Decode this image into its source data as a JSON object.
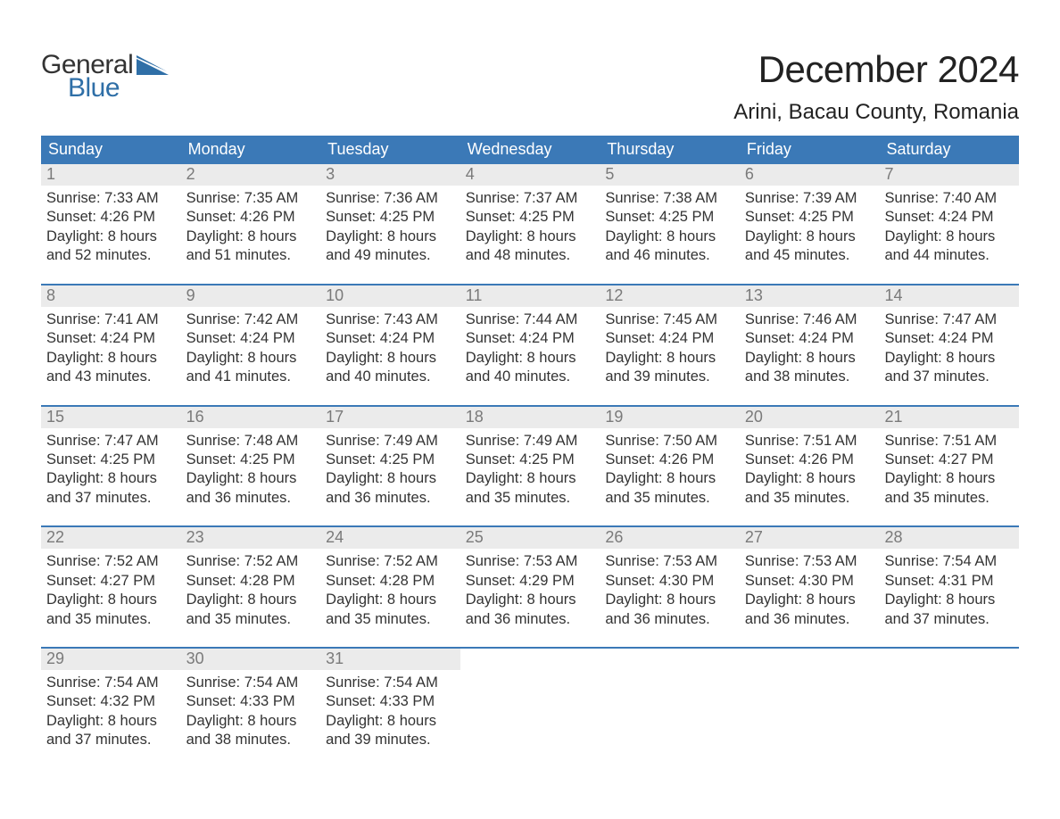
{
  "brand": {
    "word1": "General",
    "word2": "Blue",
    "accent_color": "#2f6fa7"
  },
  "title": "December 2024",
  "location": "Arini, Bacau County, Romania",
  "colors": {
    "header_bg": "#3b79b7",
    "header_fg": "#ffffff",
    "row_divider": "#3b79b7",
    "daynum_bg": "#ebebeb",
    "daynum_fg": "#7a7a7a",
    "body_text": "#333333",
    "page_bg": "#ffffff"
  },
  "days_of_week": [
    "Sunday",
    "Monday",
    "Tuesday",
    "Wednesday",
    "Thursday",
    "Friday",
    "Saturday"
  ],
  "weeks": [
    [
      {
        "n": "1",
        "sunrise": "Sunrise: 7:33 AM",
        "sunset": "Sunset: 4:26 PM",
        "day1": "Daylight: 8 hours",
        "day2": "and 52 minutes."
      },
      {
        "n": "2",
        "sunrise": "Sunrise: 7:35 AM",
        "sunset": "Sunset: 4:26 PM",
        "day1": "Daylight: 8 hours",
        "day2": "and 51 minutes."
      },
      {
        "n": "3",
        "sunrise": "Sunrise: 7:36 AM",
        "sunset": "Sunset: 4:25 PM",
        "day1": "Daylight: 8 hours",
        "day2": "and 49 minutes."
      },
      {
        "n": "4",
        "sunrise": "Sunrise: 7:37 AM",
        "sunset": "Sunset: 4:25 PM",
        "day1": "Daylight: 8 hours",
        "day2": "and 48 minutes."
      },
      {
        "n": "5",
        "sunrise": "Sunrise: 7:38 AM",
        "sunset": "Sunset: 4:25 PM",
        "day1": "Daylight: 8 hours",
        "day2": "and 46 minutes."
      },
      {
        "n": "6",
        "sunrise": "Sunrise: 7:39 AM",
        "sunset": "Sunset: 4:25 PM",
        "day1": "Daylight: 8 hours",
        "day2": "and 45 minutes."
      },
      {
        "n": "7",
        "sunrise": "Sunrise: 7:40 AM",
        "sunset": "Sunset: 4:24 PM",
        "day1": "Daylight: 8 hours",
        "day2": "and 44 minutes."
      }
    ],
    [
      {
        "n": "8",
        "sunrise": "Sunrise: 7:41 AM",
        "sunset": "Sunset: 4:24 PM",
        "day1": "Daylight: 8 hours",
        "day2": "and 43 minutes."
      },
      {
        "n": "9",
        "sunrise": "Sunrise: 7:42 AM",
        "sunset": "Sunset: 4:24 PM",
        "day1": "Daylight: 8 hours",
        "day2": "and 41 minutes."
      },
      {
        "n": "10",
        "sunrise": "Sunrise: 7:43 AM",
        "sunset": "Sunset: 4:24 PM",
        "day1": "Daylight: 8 hours",
        "day2": "and 40 minutes."
      },
      {
        "n": "11",
        "sunrise": "Sunrise: 7:44 AM",
        "sunset": "Sunset: 4:24 PM",
        "day1": "Daylight: 8 hours",
        "day2": "and 40 minutes."
      },
      {
        "n": "12",
        "sunrise": "Sunrise: 7:45 AM",
        "sunset": "Sunset: 4:24 PM",
        "day1": "Daylight: 8 hours",
        "day2": "and 39 minutes."
      },
      {
        "n": "13",
        "sunrise": "Sunrise: 7:46 AM",
        "sunset": "Sunset: 4:24 PM",
        "day1": "Daylight: 8 hours",
        "day2": "and 38 minutes."
      },
      {
        "n": "14",
        "sunrise": "Sunrise: 7:47 AM",
        "sunset": "Sunset: 4:24 PM",
        "day1": "Daylight: 8 hours",
        "day2": "and 37 minutes."
      }
    ],
    [
      {
        "n": "15",
        "sunrise": "Sunrise: 7:47 AM",
        "sunset": "Sunset: 4:25 PM",
        "day1": "Daylight: 8 hours",
        "day2": "and 37 minutes."
      },
      {
        "n": "16",
        "sunrise": "Sunrise: 7:48 AM",
        "sunset": "Sunset: 4:25 PM",
        "day1": "Daylight: 8 hours",
        "day2": "and 36 minutes."
      },
      {
        "n": "17",
        "sunrise": "Sunrise: 7:49 AM",
        "sunset": "Sunset: 4:25 PM",
        "day1": "Daylight: 8 hours",
        "day2": "and 36 minutes."
      },
      {
        "n": "18",
        "sunrise": "Sunrise: 7:49 AM",
        "sunset": "Sunset: 4:25 PM",
        "day1": "Daylight: 8 hours",
        "day2": "and 35 minutes."
      },
      {
        "n": "19",
        "sunrise": "Sunrise: 7:50 AM",
        "sunset": "Sunset: 4:26 PM",
        "day1": "Daylight: 8 hours",
        "day2": "and 35 minutes."
      },
      {
        "n": "20",
        "sunrise": "Sunrise: 7:51 AM",
        "sunset": "Sunset: 4:26 PM",
        "day1": "Daylight: 8 hours",
        "day2": "and 35 minutes."
      },
      {
        "n": "21",
        "sunrise": "Sunrise: 7:51 AM",
        "sunset": "Sunset: 4:27 PM",
        "day1": "Daylight: 8 hours",
        "day2": "and 35 minutes."
      }
    ],
    [
      {
        "n": "22",
        "sunrise": "Sunrise: 7:52 AM",
        "sunset": "Sunset: 4:27 PM",
        "day1": "Daylight: 8 hours",
        "day2": "and 35 minutes."
      },
      {
        "n": "23",
        "sunrise": "Sunrise: 7:52 AM",
        "sunset": "Sunset: 4:28 PM",
        "day1": "Daylight: 8 hours",
        "day2": "and 35 minutes."
      },
      {
        "n": "24",
        "sunrise": "Sunrise: 7:52 AM",
        "sunset": "Sunset: 4:28 PM",
        "day1": "Daylight: 8 hours",
        "day2": "and 35 minutes."
      },
      {
        "n": "25",
        "sunrise": "Sunrise: 7:53 AM",
        "sunset": "Sunset: 4:29 PM",
        "day1": "Daylight: 8 hours",
        "day2": "and 36 minutes."
      },
      {
        "n": "26",
        "sunrise": "Sunrise: 7:53 AM",
        "sunset": "Sunset: 4:30 PM",
        "day1": "Daylight: 8 hours",
        "day2": "and 36 minutes."
      },
      {
        "n": "27",
        "sunrise": "Sunrise: 7:53 AM",
        "sunset": "Sunset: 4:30 PM",
        "day1": "Daylight: 8 hours",
        "day2": "and 36 minutes."
      },
      {
        "n": "28",
        "sunrise": "Sunrise: 7:54 AM",
        "sunset": "Sunset: 4:31 PM",
        "day1": "Daylight: 8 hours",
        "day2": "and 37 minutes."
      }
    ],
    [
      {
        "n": "29",
        "sunrise": "Sunrise: 7:54 AM",
        "sunset": "Sunset: 4:32 PM",
        "day1": "Daylight: 8 hours",
        "day2": "and 37 minutes."
      },
      {
        "n": "30",
        "sunrise": "Sunrise: 7:54 AM",
        "sunset": "Sunset: 4:33 PM",
        "day1": "Daylight: 8 hours",
        "day2": "and 38 minutes."
      },
      {
        "n": "31",
        "sunrise": "Sunrise: 7:54 AM",
        "sunset": "Sunset: 4:33 PM",
        "day1": "Daylight: 8 hours",
        "day2": "and 39 minutes."
      },
      {
        "empty": true
      },
      {
        "empty": true
      },
      {
        "empty": true
      },
      {
        "empty": true
      }
    ]
  ]
}
